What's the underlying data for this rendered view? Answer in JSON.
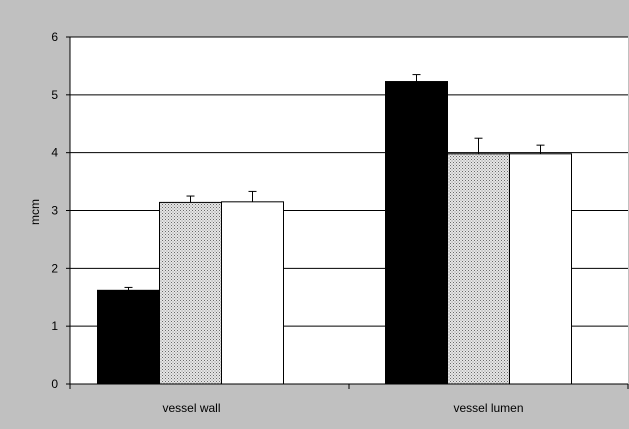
{
  "chart_data": {
    "type": "bar",
    "ylabel": "mcm",
    "xlabel": "",
    "title": "",
    "ylim": [
      0,
      6
    ],
    "y_ticks": [
      0,
      1,
      2,
      3,
      4,
      5,
      6
    ],
    "grid": true,
    "legend": "none",
    "categories": [
      "vessel wall",
      "vessel lumen"
    ],
    "series": [
      {
        "values": [
          1.62,
          5.23
        ],
        "errors": [
          0.05,
          0.12
        ],
        "fill": "solid",
        "color": "#000000"
      },
      {
        "values": [
          3.14,
          3.98
        ],
        "errors": [
          0.11,
          0.27
        ],
        "fill": "dotted",
        "color": "#b8b8b8"
      },
      {
        "values": [
          3.15,
          3.98
        ],
        "errors": [
          0.18,
          0.15
        ],
        "fill": "solid",
        "color": "#ffffff"
      }
    ],
    "colors": {
      "background": "#c0c0c0",
      "plot_area": "#ffffff",
      "grid": "#000000"
    }
  }
}
